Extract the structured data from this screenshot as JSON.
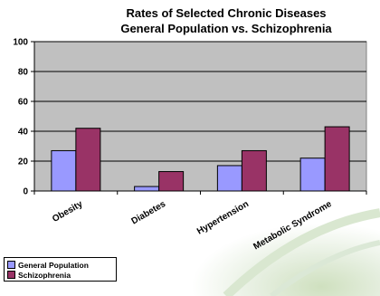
{
  "chart_data": {
    "type": "bar",
    "title": "Rates of Selected Chronic Diseases",
    "subtitle": "General Population vs. Schizophrenia",
    "categories": [
      "Obesity",
      "Diabetes",
      "Hypertension",
      "Metabolic Syndrome"
    ],
    "series": [
      {
        "name": "General Population",
        "values": [
          27,
          3,
          17,
          22
        ],
        "color": "#9999ff"
      },
      {
        "name": "Schizophrenia",
        "values": [
          42,
          13,
          27,
          43
        ],
        "color": "#993366"
      }
    ],
    "ylim": [
      0,
      100
    ],
    "yticks": [
      0,
      20,
      40,
      60,
      80,
      100
    ],
    "plot_background": "#c0c0c0",
    "gridlines": true,
    "legend_position": "bottom-left"
  }
}
